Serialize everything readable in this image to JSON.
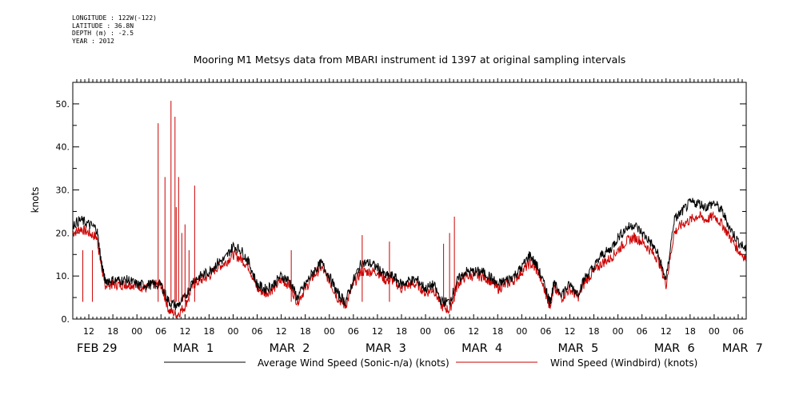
{
  "meta": {
    "longitude": "LONGITUDE : 122W(-122)",
    "latitude": "LATITUDE : 36.8N",
    "depth": "DEPTH (m) : -2.5",
    "year": "YEAR : 2012"
  },
  "colors": {
    "sonic": "#000000",
    "windbird": "#cc0000"
  },
  "chart_data": {
    "type": "line",
    "title": "Mooring M1 Metsys data from MBARI instrument id 1397 at original sampling intervals",
    "ylabel": "knots",
    "xlabel": "",
    "ylim": [
      0,
      55
    ],
    "yticks": [
      0,
      10,
      20,
      30,
      40,
      50
    ],
    "ytick_labels": [
      "0.",
      "10.",
      "20.",
      "30.",
      "40.",
      "50."
    ],
    "x_unit": "hours after 2012-02-29 00:00",
    "xlim": [
      8,
      176
    ],
    "hour_ticks": [
      {
        "x": 12,
        "label": "12"
      },
      {
        "x": 18,
        "label": "18"
      },
      {
        "x": 24,
        "label": "00"
      },
      {
        "x": 30,
        "label": "06"
      },
      {
        "x": 36,
        "label": "12"
      },
      {
        "x": 42,
        "label": "18"
      },
      {
        "x": 48,
        "label": "00"
      },
      {
        "x": 54,
        "label": "06"
      },
      {
        "x": 60,
        "label": "12"
      },
      {
        "x": 66,
        "label": "18"
      },
      {
        "x": 72,
        "label": "00"
      },
      {
        "x": 78,
        "label": "06"
      },
      {
        "x": 84,
        "label": "12"
      },
      {
        "x": 90,
        "label": "18"
      },
      {
        "x": 96,
        "label": "00"
      },
      {
        "x": 102,
        "label": "06"
      },
      {
        "x": 108,
        "label": "12"
      },
      {
        "x": 114,
        "label": "18"
      },
      {
        "x": 120,
        "label": "00"
      },
      {
        "x": 126,
        "label": "06"
      },
      {
        "x": 132,
        "label": "12"
      },
      {
        "x": 138,
        "label": "18"
      },
      {
        "x": 144,
        "label": "00"
      },
      {
        "x": 150,
        "label": "06"
      },
      {
        "x": 156,
        "label": "12"
      },
      {
        "x": 162,
        "label": "18"
      },
      {
        "x": 168,
        "label": "00"
      },
      {
        "x": 174,
        "label": "06"
      }
    ],
    "day_labels": [
      {
        "x": 9,
        "label": "FEB 29"
      },
      {
        "x": 33,
        "label": "MAR  1"
      },
      {
        "x": 57,
        "label": "MAR  2"
      },
      {
        "x": 81,
        "label": "MAR  3"
      },
      {
        "x": 105,
        "label": "MAR  4"
      },
      {
        "x": 129,
        "label": "MAR  5"
      },
      {
        "x": 153,
        "label": "MAR  6"
      },
      {
        "x": 170,
        "label": "MAR  7"
      }
    ],
    "series": [
      {
        "name": "Average Wind Speed (Sonic-n/a) (knots)",
        "x": [
          8,
          10,
          12,
          14,
          15,
          16,
          18,
          20,
          22,
          24,
          26,
          28,
          30,
          32,
          34,
          36,
          38,
          40,
          42,
          44,
          46,
          48,
          50,
          52,
          54,
          56,
          58,
          60,
          62,
          64,
          66,
          68,
          70,
          72,
          74,
          76,
          78,
          80,
          82,
          84,
          86,
          88,
          90,
          92,
          94,
          96,
          98,
          100,
          102,
          104,
          106,
          108,
          110,
          112,
          114,
          116,
          118,
          120,
          122,
          124,
          126,
          127,
          128,
          130,
          132,
          134,
          136,
          138,
          140,
          142,
          144,
          146,
          148,
          150,
          152,
          154,
          156,
          158,
          160,
          162,
          164,
          166,
          168,
          170,
          172,
          174,
          176
        ],
        "y": [
          22,
          23,
          22,
          21,
          14,
          9,
          9,
          9,
          9,
          8,
          8,
          8,
          8,
          4,
          3,
          5,
          9,
          10,
          11,
          13,
          14,
          17,
          16,
          13,
          8,
          7,
          8,
          10,
          9,
          5,
          8,
          11,
          13,
          10,
          6,
          4,
          9,
          13,
          13,
          12,
          10,
          10,
          8,
          9,
          9,
          7,
          8,
          4,
          4,
          9,
          11,
          11,
          11,
          10,
          8,
          9,
          10,
          12,
          15,
          12,
          7,
          4,
          8,
          6,
          8,
          6,
          10,
          12,
          15,
          16,
          19,
          21,
          22,
          20,
          18,
          15,
          9,
          23,
          25,
          27,
          27,
          26,
          27,
          25,
          21,
          18,
          16
        ]
      },
      {
        "name": "Wind Speed (Windbird) (knots)",
        "x": [
          8,
          10,
          12,
          14,
          15,
          16,
          18,
          20,
          22,
          24,
          26,
          28,
          30,
          32,
          34,
          36,
          38,
          40,
          42,
          44,
          46,
          48,
          50,
          52,
          54,
          56,
          58,
          60,
          62,
          64,
          66,
          68,
          70,
          72,
          74,
          76,
          78,
          80,
          82,
          84,
          86,
          88,
          90,
          92,
          94,
          96,
          98,
          100,
          102,
          104,
          106,
          108,
          110,
          112,
          114,
          116,
          118,
          120,
          122,
          124,
          126,
          127,
          128,
          130,
          132,
          134,
          136,
          138,
          140,
          142,
          144,
          146,
          148,
          150,
          152,
          154,
          156,
          158,
          160,
          162,
          164,
          166,
          168,
          170,
          172,
          174,
          176
        ],
        "y": [
          20,
          21,
          20,
          19,
          13,
          8,
          8,
          8,
          8,
          8,
          7,
          8,
          8,
          2,
          1,
          3,
          8,
          9,
          10,
          12,
          13,
          15,
          14,
          12,
          7,
          6,
          7,
          9,
          8,
          4,
          7,
          10,
          12,
          9,
          5,
          3,
          8,
          11,
          11,
          11,
          9,
          9,
          7,
          8,
          8,
          6,
          7,
          3,
          2,
          8,
          10,
          10,
          10,
          9,
          7,
          8,
          9,
          11,
          13,
          11,
          6,
          3,
          7,
          5,
          7,
          5,
          9,
          11,
          13,
          14,
          16,
          18,
          19,
          18,
          16,
          14,
          8,
          20,
          22,
          23,
          24,
          23,
          24,
          22,
          19,
          16,
          14
        ]
      }
    ],
    "spikes": {
      "series": "Wind Speed (Windbird) (knots)",
      "x": [
        10.5,
        12.9,
        29.3,
        31.0,
        32.5,
        33.5,
        33.8,
        34.4,
        35.2,
        36.0,
        37.0,
        38.4,
        62.5,
        80.2,
        87.0,
        100.5,
        102.0,
        103.2
      ],
      "y": [
        16,
        16,
        45.5,
        33,
        50.7,
        47,
        26,
        33,
        20,
        22,
        16,
        31,
        16,
        19.5,
        18,
        17.5,
        20,
        23.8
      ]
    }
  }
}
